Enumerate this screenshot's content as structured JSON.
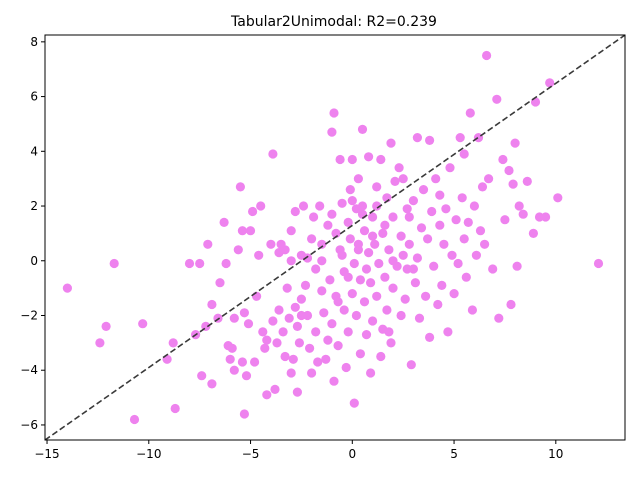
{
  "chart_data": {
    "type": "scatter",
    "title": "Tabular2Unimodal: R2=0.239",
    "xlabel": "",
    "ylabel": "",
    "xlim": [
      -15.1,
      13.4
    ],
    "ylim": [
      -6.55,
      8.25
    ],
    "xticks": [
      -15,
      -10,
      -5,
      0,
      5,
      10
    ],
    "yticks": [
      -6,
      -4,
      -2,
      0,
      2,
      4,
      6,
      8
    ],
    "grid": false,
    "reference_line": {
      "style": "dashed",
      "from": [
        -15.1,
        -6.55
      ],
      "to": [
        13.4,
        8.25
      ]
    },
    "colors": {
      "points": "#ee82ee",
      "reference_line": "#3a3a3a",
      "axes": "#000000"
    },
    "points": [
      [
        -14,
        -1
      ],
      [
        -12.4,
        -3
      ],
      [
        -12.1,
        -2.4
      ],
      [
        -11.7,
        -0.1
      ],
      [
        -10.3,
        -2.3
      ],
      [
        -10.7,
        -5.8
      ],
      [
        -9.1,
        -3.6
      ],
      [
        -8.7,
        -5.4
      ],
      [
        -8.8,
        -3
      ],
      [
        -8,
        -0.1
      ],
      [
        -7.5,
        -0.1
      ],
      [
        -7.7,
        -2.7
      ],
      [
        -7.4,
        -4.2
      ],
      [
        -7.2,
        -2.4
      ],
      [
        -7.1,
        0.6
      ],
      [
        -6.9,
        -4.5
      ],
      [
        -6.9,
        -1.6
      ],
      [
        -6.6,
        -2.1
      ],
      [
        -6.5,
        -0.8
      ],
      [
        -6.3,
        1.4
      ],
      [
        -6.2,
        -0.1
      ],
      [
        -6.1,
        -3.1
      ],
      [
        -6.0,
        -3.6
      ],
      [
        -5.9,
        -3.2
      ],
      [
        -5.8,
        -2.1
      ],
      [
        -5.8,
        -4.0
      ],
      [
        -5.6,
        0.4
      ],
      [
        -5.5,
        2.7
      ],
      [
        -5.4,
        1.1
      ],
      [
        -5.4,
        -3.7
      ],
      [
        -5.3,
        -1.9
      ],
      [
        -5.3,
        -5.6
      ],
      [
        -5.2,
        -4.2
      ],
      [
        -5.1,
        -2.3
      ],
      [
        -5,
        1.1
      ],
      [
        -4.9,
        1.8
      ],
      [
        -4.8,
        -3.7
      ],
      [
        -4.7,
        -1.3
      ],
      [
        -4.6,
        0.2
      ],
      [
        -4.5,
        2.0
      ],
      [
        -4.4,
        -2.6
      ],
      [
        -4.3,
        -3.2
      ],
      [
        -4.2,
        -2.9
      ],
      [
        -4.2,
        -4.9
      ],
      [
        -4.0,
        0.6
      ],
      [
        -3.9,
        -2.2
      ],
      [
        -3.9,
        3.9
      ],
      [
        -3.8,
        -4.7
      ],
      [
        -3.7,
        -3.0
      ],
      [
        -3.6,
        -1.8
      ],
      [
        -3.6,
        0.3
      ],
      [
        -3.5,
        0.6
      ],
      [
        -3.4,
        -2.6
      ],
      [
        -3.3,
        -3.5
      ],
      [
        -3.3,
        0.4
      ],
      [
        -3.2,
        -1.0
      ],
      [
        -3.1,
        -2.1
      ],
      [
        -3.0,
        1.1
      ],
      [
        -3.0,
        -4.1
      ],
      [
        -2.9,
        -3.6
      ],
      [
        -2.8,
        -1.7
      ],
      [
        -2.8,
        1.8
      ],
      [
        -2.7,
        -2.4
      ],
      [
        -2.7,
        -4.8
      ],
      [
        -2.6,
        -3.0
      ],
      [
        -2.5,
        0.2
      ],
      [
        -2.5,
        -1.4
      ],
      [
        -2.4,
        2.0
      ],
      [
        -2.3,
        -0.9
      ],
      [
        -2.2,
        -2.0
      ],
      [
        -2.1,
        -3.2
      ],
      [
        -2.0,
        0.8
      ],
      [
        -2.0,
        -4.1
      ],
      [
        -1.9,
        1.6
      ],
      [
        -1.8,
        -2.6
      ],
      [
        -1.8,
        -0.3
      ],
      [
        -1.7,
        -3.7
      ],
      [
        -1.6,
        2.0
      ],
      [
        -1.5,
        -1.1
      ],
      [
        -1.5,
        0.6
      ],
      [
        -1.4,
        -1.9
      ],
      [
        -1.3,
        -3.6
      ],
      [
        -1.2,
        1.3
      ],
      [
        -1.1,
        -0.7
      ],
      [
        -1.0,
        -2.3
      ],
      [
        -1.0,
        4.7
      ],
      [
        -0.9,
        -4.4
      ],
      [
        -0.9,
        5.4
      ],
      [
        -0.8,
        1.0
      ],
      [
        -0.7,
        -1.5
      ],
      [
        -0.7,
        -3.1
      ],
      [
        -0.6,
        0.4
      ],
      [
        -0.6,
        3.7
      ],
      [
        -0.5,
        2.1
      ],
      [
        -0.4,
        -0.4
      ],
      [
        -0.4,
        -1.8
      ],
      [
        -0.3,
        -3.9
      ],
      [
        -0.2,
        1.4
      ],
      [
        -0.2,
        -2.6
      ],
      [
        -0.1,
        0.8
      ],
      [
        -0.1,
        2.6
      ],
      [
        0,
        -1.2
      ],
      [
        0,
        3.7
      ],
      [
        0.1,
        -0.1
      ],
      [
        0.1,
        -5.2
      ],
      [
        0.2,
        1.9
      ],
      [
        0.2,
        -2.0
      ],
      [
        0.3,
        0.4
      ],
      [
        0.3,
        3.0
      ],
      [
        0.4,
        -0.7
      ],
      [
        0.4,
        -3.4
      ],
      [
        0.5,
        2.0
      ],
      [
        0.5,
        4.8
      ],
      [
        0.6,
        1.1
      ],
      [
        0.6,
        -1.5
      ],
      [
        0.7,
        -2.7
      ],
      [
        0.8,
        0.3
      ],
      [
        0.8,
        3.8
      ],
      [
        0.9,
        -0.8
      ],
      [
        0.9,
        -4.1
      ],
      [
        1.0,
        1.6
      ],
      [
        1.0,
        -2.2
      ],
      [
        1.1,
        0.6
      ],
      [
        1.2,
        2.7
      ],
      [
        1.2,
        -1.3
      ],
      [
        1.3,
        -0.1
      ],
      [
        1.4,
        -3.5
      ],
      [
        1.4,
        3.7
      ],
      [
        1.5,
        1.0
      ],
      [
        1.5,
        -2.5
      ],
      [
        1.6,
        -0.6
      ],
      [
        1.7,
        2.3
      ],
      [
        1.7,
        -1.8
      ],
      [
        1.8,
        0.4
      ],
      [
        1.9,
        4.3
      ],
      [
        1.9,
        -3.0
      ],
      [
        2.0,
        1.6
      ],
      [
        2.0,
        -1.0
      ],
      [
        2.1,
        2.9
      ],
      [
        2.2,
        -0.2
      ],
      [
        2.3,
        3.4
      ],
      [
        2.4,
        -2.0
      ],
      [
        2.4,
        0.9
      ],
      [
        2.5,
        3.0
      ],
      [
        2.6,
        -1.4
      ],
      [
        2.7,
        1.9
      ],
      [
        2.7,
        -0.3
      ],
      [
        2.8,
        0.6
      ],
      [
        2.9,
        -3.8
      ],
      [
        3.0,
        2.2
      ],
      [
        3.1,
        -0.8
      ],
      [
        3.2,
        4.5
      ],
      [
        3.2,
        0.1
      ],
      [
        3.3,
        -2.1
      ],
      [
        3.4,
        1.2
      ],
      [
        3.5,
        2.6
      ],
      [
        3.6,
        -1.3
      ],
      [
        3.7,
        0.8
      ],
      [
        3.8,
        4.4
      ],
      [
        3.8,
        -2.8
      ],
      [
        3.9,
        1.8
      ],
      [
        4.0,
        -0.2
      ],
      [
        4.1,
        3.0
      ],
      [
        4.2,
        -1.6
      ],
      [
        4.3,
        1.3
      ],
      [
        4.3,
        2.4
      ],
      [
        4.4,
        -0.9
      ],
      [
        4.5,
        0.6
      ],
      [
        4.6,
        1.9
      ],
      [
        4.7,
        -2.6
      ],
      [
        4.8,
        3.4
      ],
      [
        4.9,
        0.2
      ],
      [
        5.0,
        -1.2
      ],
      [
        5.1,
        1.5
      ],
      [
        5.2,
        -0.1
      ],
      [
        5.3,
        4.5
      ],
      [
        5.4,
        2.3
      ],
      [
        5.5,
        3.9
      ],
      [
        5.5,
        0.8
      ],
      [
        5.6,
        -0.6
      ],
      [
        5.7,
        1.4
      ],
      [
        5.8,
        5.4
      ],
      [
        5.9,
        -1.8
      ],
      [
        6.0,
        2.0
      ],
      [
        6.1,
        0.2
      ],
      [
        6.2,
        4.5
      ],
      [
        6.3,
        1.1
      ],
      [
        6.4,
        2.7
      ],
      [
        6.5,
        0.6
      ],
      [
        6.6,
        7.5
      ],
      [
        6.7,
        3.0
      ],
      [
        6.9,
        -0.3
      ],
      [
        7.1,
        5.9
      ],
      [
        7.2,
        -2.1
      ],
      [
        7.4,
        3.7
      ],
      [
        7.5,
        1.5
      ],
      [
        7.7,
        3.3
      ],
      [
        7.8,
        -1.6
      ],
      [
        7.9,
        2.8
      ],
      [
        8.0,
        4.3
      ],
      [
        8.1,
        -0.2
      ],
      [
        8.2,
        2.0
      ],
      [
        8.4,
        1.7
      ],
      [
        8.6,
        2.9
      ],
      [
        8.9,
        1.0
      ],
      [
        9.0,
        5.8
      ],
      [
        9.2,
        1.6
      ],
      [
        9.5,
        1.6
      ],
      [
        9.7,
        6.5
      ],
      [
        10.1,
        2.3
      ],
      [
        12.1,
        -0.1
      ],
      [
        0.5,
        1.7
      ],
      [
        1.0,
        0.9
      ],
      [
        -0.5,
        0.2
      ],
      [
        2.0,
        0.0
      ],
      [
        -1.5,
        0.0
      ],
      [
        0.3,
        0.6
      ],
      [
        -0.2,
        -0.6
      ],
      [
        1.6,
        1.3
      ],
      [
        -1.0,
        1.7
      ],
      [
        0.7,
        -0.3
      ],
      [
        -2.2,
        0.1
      ],
      [
        2.5,
        0.2
      ],
      [
        -0.8,
        -1.3
      ],
      [
        1.2,
        2.0
      ],
      [
        -3.0,
        0.0
      ],
      [
        3.0,
        -0.3
      ],
      [
        -2.5,
        -2.0
      ],
      [
        0.0,
        2.2
      ],
      [
        1.8,
        -2.6
      ],
      [
        -1.2,
        -2.9
      ],
      [
        2.8,
        1.6
      ]
    ]
  }
}
